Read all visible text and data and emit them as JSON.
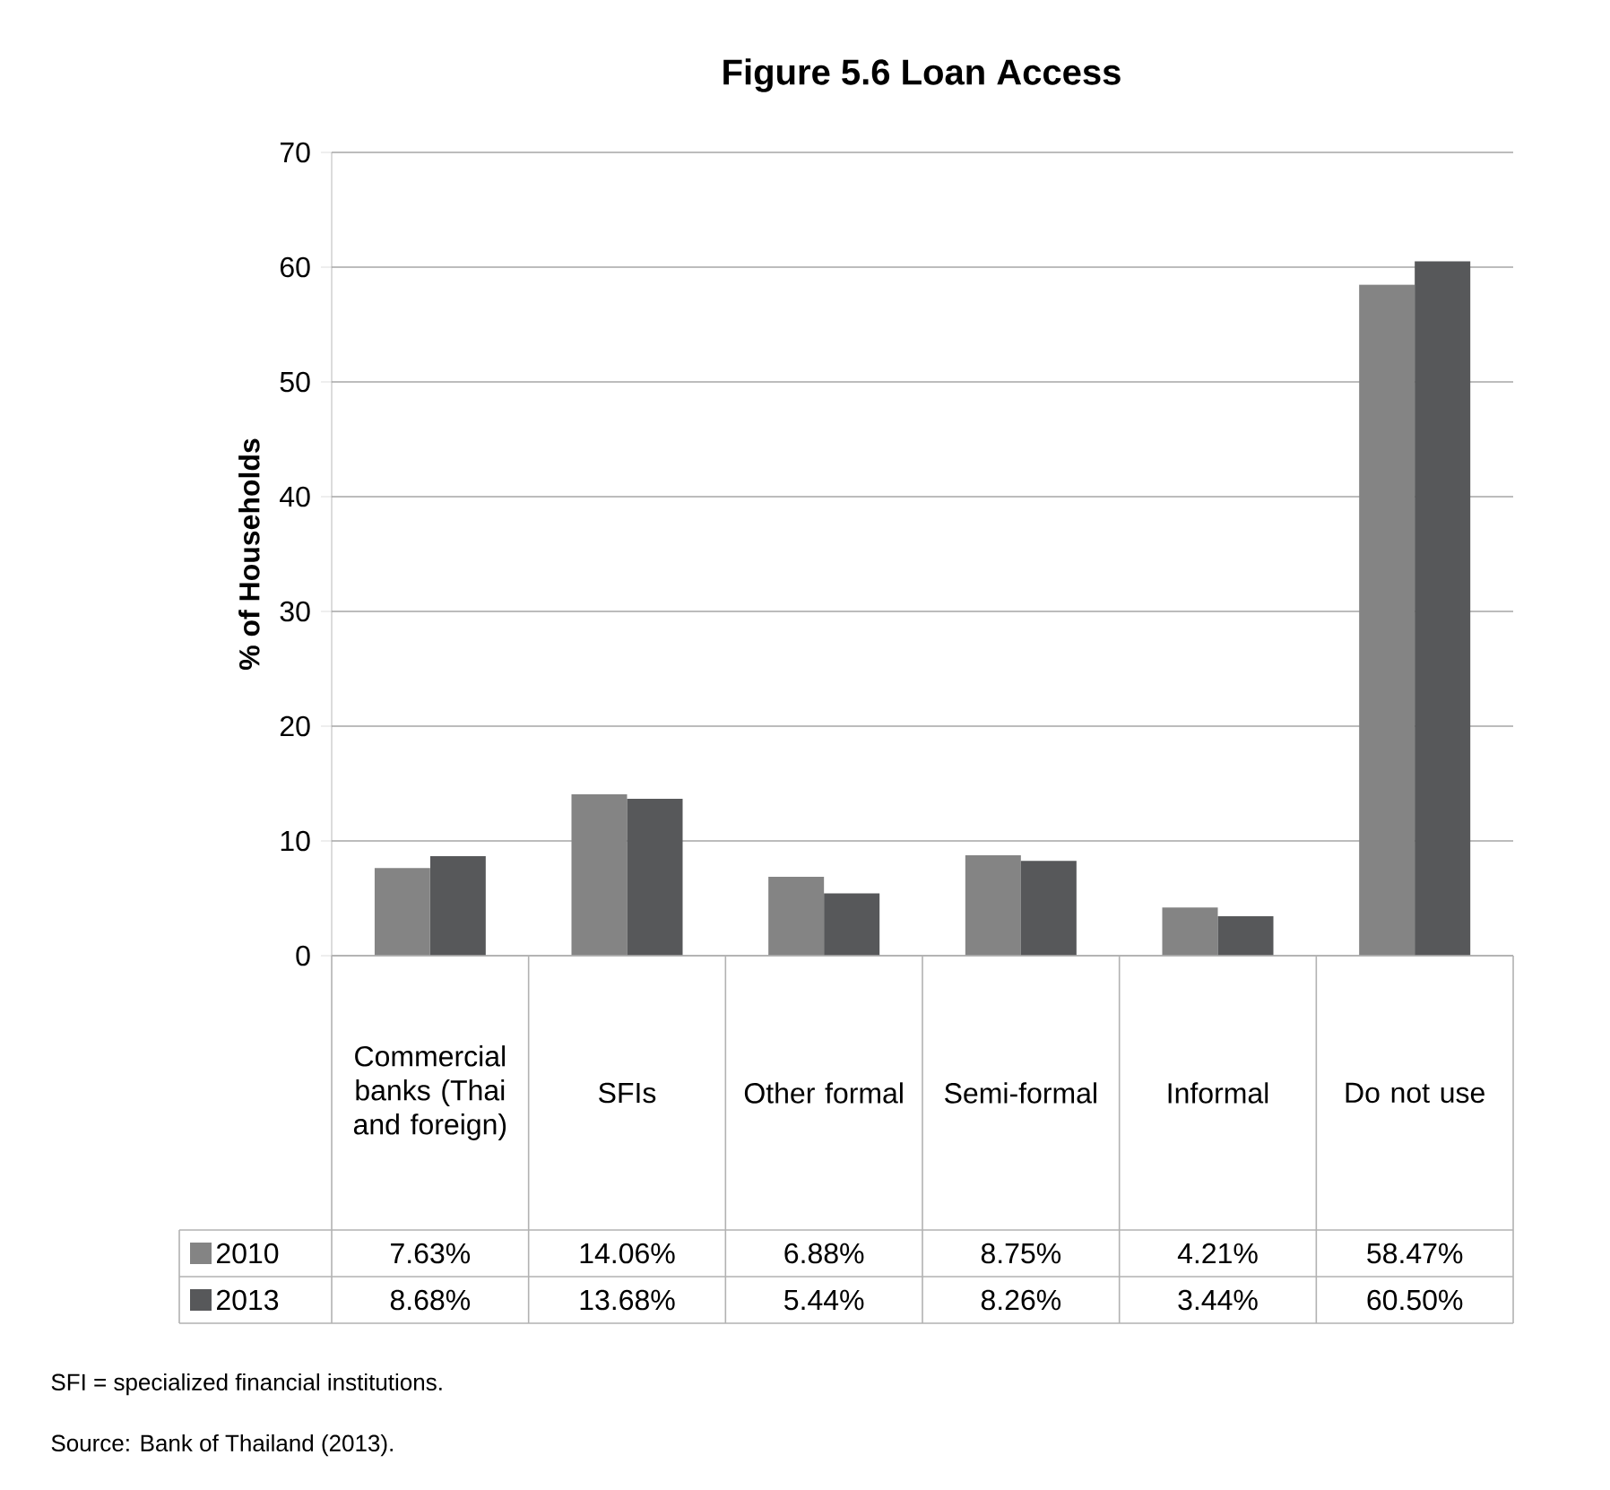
{
  "chart_data": {
    "type": "bar",
    "title": "Figure 5.6    Loan Access",
    "ylabel": "% of Households",
    "categories": [
      "Commercial banks (Thai and foreign)",
      "SFIs",
      "Other formal",
      "Semi-formal",
      "Informal",
      "Do not use"
    ],
    "series": [
      {
        "name": "2010",
        "color": "#848484",
        "values": [
          7.63,
          14.06,
          6.88,
          8.75,
          4.21,
          58.47
        ],
        "value_labels": [
          "7.63%",
          "14.06%",
          "6.88%",
          "8.75%",
          "4.21%",
          "58.47%"
        ]
      },
      {
        "name": "2013",
        "color": "#57585a",
        "values": [
          8.68,
          13.68,
          5.44,
          8.26,
          3.44,
          60.5
        ],
        "value_labels": [
          "8.68%",
          "13.68%",
          "5.44%",
          "8.26%",
          "3.44%",
          "60.50%"
        ]
      }
    ],
    "ylim": [
      0,
      70
    ],
    "yticks": [
      0,
      10,
      20,
      30,
      40,
      50,
      60,
      70
    ],
    "grid": "y",
    "legend": "bottom",
    "annotations": [
      "SFI = specialized financial institutions.",
      "Source: Bank of Thailand (2013)."
    ]
  }
}
